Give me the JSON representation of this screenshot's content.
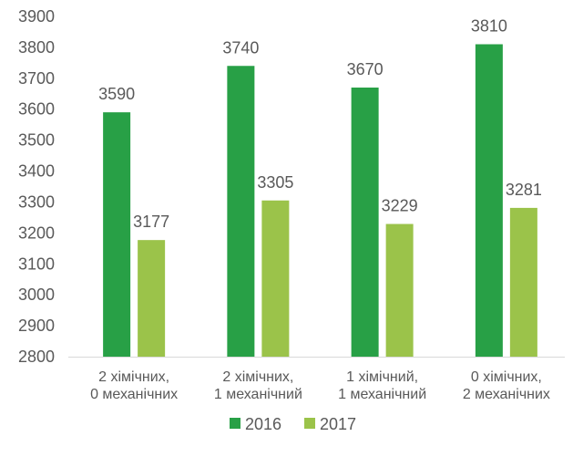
{
  "chart_data": {
    "type": "bar",
    "title": "",
    "xlabel": "",
    "ylabel": "",
    "ylim": [
      2800,
      3900
    ],
    "ytick_step": 100,
    "grid": false,
    "legend_position": "bottom",
    "categories": [
      [
        "2 хімічних,",
        "0 механічних"
      ],
      [
        "2 хімічних,",
        "1 механічний"
      ],
      [
        "1 хімічний,",
        "1 механічний"
      ],
      [
        "0 хімічних,",
        "2 механічних"
      ]
    ],
    "series": [
      {
        "name": "2016",
        "color": "#28a046",
        "values": [
          3590,
          3740,
          3670,
          3810
        ]
      },
      {
        "name": "2017",
        "color": "#9bc34a",
        "values": [
          3177,
          3305,
          3229,
          3281
        ]
      }
    ]
  }
}
